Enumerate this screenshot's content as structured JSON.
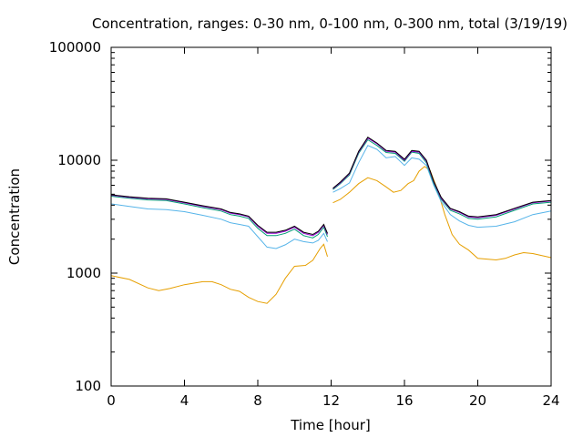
{
  "chart_data": {
    "type": "line",
    "title": "Concentration, ranges: 0-30 nm, 0-100 nm, 0-300 nm, total (3/19/19)",
    "xlabel": "Time [hour]",
    "ylabel": "Concentration",
    "xlim": [
      0,
      24
    ],
    "ylim": [
      100,
      100000
    ],
    "yscale": "log",
    "grid": false,
    "legend": "none",
    "x_ticks": [
      0,
      4,
      8,
      12,
      16,
      20,
      24
    ],
    "x_tick_labels": [
      "0",
      "4",
      "8",
      "12",
      "16",
      "20",
      "24"
    ],
    "y_ticks": [
      100,
      1000,
      10000,
      100000
    ],
    "y_tick_labels": [
      "100",
      "1000",
      "10000",
      "100000"
    ],
    "series": [
      {
        "color": "#e69f00",
        "segments": [
          [
            [
              0,
              950
            ],
            [
              1,
              880
            ],
            [
              2,
              740
            ],
            [
              2.6,
              700
            ],
            [
              3.2,
              730
            ],
            [
              4,
              790
            ],
            [
              5,
              840
            ],
            [
              5.5,
              840
            ],
            [
              6,
              790
            ],
            [
              6.5,
              720
            ],
            [
              7,
              690
            ],
            [
              7.5,
              610
            ],
            [
              8,
              560
            ],
            [
              8.5,
              540
            ],
            [
              9,
              650
            ],
            [
              9.5,
              900
            ],
            [
              10,
              1150
            ],
            [
              10.6,
              1170
            ],
            [
              11,
              1300
            ],
            [
              11.4,
              1650
            ],
            [
              11.6,
              1800
            ],
            [
              11.8,
              1400
            ]
          ],
          [
            [
              12.1,
              4200
            ],
            [
              12.5,
              4500
            ],
            [
              13,
              5200
            ],
            [
              13.5,
              6200
            ],
            [
              14,
              7000
            ],
            [
              14.5,
              6600
            ],
            [
              15,
              5800
            ],
            [
              15.4,
              5200
            ],
            [
              15.8,
              5400
            ],
            [
              16.2,
              6200
            ],
            [
              16.5,
              6600
            ],
            [
              16.8,
              8000
            ],
            [
              17.1,
              8800
            ],
            [
              17.4,
              8100
            ],
            [
              17.8,
              5500
            ],
            [
              18.2,
              3300
            ],
            [
              18.6,
              2200
            ],
            [
              19,
              1800
            ],
            [
              19.5,
              1600
            ],
            [
              20,
              1350
            ],
            [
              21,
              1310
            ],
            [
              21.5,
              1350
            ],
            [
              22,
              1450
            ],
            [
              22.5,
              1520
            ],
            [
              23,
              1490
            ],
            [
              24,
              1370
            ]
          ]
        ]
      },
      {
        "color": "#56b4e9",
        "segments": [
          [
            [
              0,
              4100
            ],
            [
              1,
              3900
            ],
            [
              2,
              3700
            ],
            [
              3,
              3650
            ],
            [
              4,
              3500
            ],
            [
              5,
              3250
            ],
            [
              6,
              3000
            ],
            [
              6.5,
              2800
            ],
            [
              7,
              2700
            ],
            [
              7.5,
              2600
            ],
            [
              8,
              2100
            ],
            [
              8.5,
              1700
            ],
            [
              9,
              1650
            ],
            [
              9.5,
              1780
            ],
            [
              10,
              2000
            ],
            [
              10.5,
              1900
            ],
            [
              11,
              1850
            ],
            [
              11.3,
              1950
            ],
            [
              11.6,
              2250
            ],
            [
              11.8,
              1900
            ]
          ],
          [
            [
              12.1,
              5200
            ],
            [
              12.5,
              5600
            ],
            [
              13,
              6300
            ],
            [
              13.5,
              9500
            ],
            [
              14,
              13500
            ],
            [
              14.5,
              12500
            ],
            [
              15,
              10500
            ],
            [
              15.5,
              10800
            ],
            [
              16,
              9000
            ],
            [
              16.4,
              10500
            ],
            [
              16.8,
              10200
            ],
            [
              17.2,
              9000
            ],
            [
              17.6,
              6000
            ],
            [
              18,
              4300
            ],
            [
              18.5,
              3300
            ],
            [
              19,
              2900
            ],
            [
              19.5,
              2650
            ],
            [
              20,
              2550
            ],
            [
              21,
              2600
            ],
            [
              22,
              2850
            ],
            [
              23,
              3300
            ],
            [
              24,
              3550
            ]
          ]
        ]
      },
      {
        "color": "#009e73",
        "segments": [
          [
            [
              0,
              4800
            ],
            [
              1,
              4600
            ],
            [
              2,
              4450
            ],
            [
              3,
              4400
            ],
            [
              4,
              4100
            ],
            [
              5,
              3800
            ],
            [
              6,
              3550
            ],
            [
              6.5,
              3300
            ],
            [
              7,
              3200
            ],
            [
              7.5,
              3050
            ],
            [
              8,
              2500
            ],
            [
              8.5,
              2150
            ],
            [
              9,
              2150
            ],
            [
              9.5,
              2250
            ],
            [
              10,
              2450
            ],
            [
              10.5,
              2150
            ],
            [
              11,
              2050
            ],
            [
              11.3,
              2200
            ],
            [
              11.6,
              2550
            ],
            [
              11.8,
              2100
            ]
          ],
          [
            [
              12.1,
              5500
            ],
            [
              12.5,
              6200
            ],
            [
              13,
              7400
            ],
            [
              13.5,
              11500
            ],
            [
              14,
              15200
            ],
            [
              14.5,
              13500
            ],
            [
              15,
              11700
            ],
            [
              15.5,
              11500
            ],
            [
              16,
              9800
            ],
            [
              16.4,
              11800
            ],
            [
              16.8,
              11500
            ],
            [
              17.2,
              9500
            ],
            [
              17.6,
              6200
            ],
            [
              18,
              4500
            ],
            [
              18.5,
              3600
            ],
            [
              19,
              3350
            ],
            [
              19.5,
              3050
            ],
            [
              20,
              3000
            ],
            [
              21,
              3150
            ],
            [
              22,
              3600
            ],
            [
              23,
              4100
            ],
            [
              24,
              4250
            ]
          ]
        ]
      },
      {
        "color": "#9400d3",
        "segments": [
          [
            [
              0,
              4900
            ],
            [
              1,
              4700
            ],
            [
              2,
              4550
            ],
            [
              3,
              4500
            ],
            [
              4,
              4200
            ],
            [
              5,
              3900
            ],
            [
              6,
              3650
            ],
            [
              6.5,
              3400
            ],
            [
              7,
              3300
            ],
            [
              7.5,
              3150
            ],
            [
              8,
              2600
            ],
            [
              8.5,
              2250
            ],
            [
              9,
              2250
            ],
            [
              9.5,
              2350
            ],
            [
              10,
              2550
            ],
            [
              10.5,
              2250
            ],
            [
              11,
              2150
            ],
            [
              11.3,
              2300
            ],
            [
              11.6,
              2650
            ],
            [
              11.8,
              2200
            ]
          ],
          [
            [
              12.1,
              5600
            ],
            [
              12.5,
              6300
            ],
            [
              13,
              7600
            ],
            [
              13.5,
              11800
            ],
            [
              14,
              15700
            ],
            [
              14.5,
              14000
            ],
            [
              15,
              12000
            ],
            [
              15.5,
              11800
            ],
            [
              16,
              10000
            ],
            [
              16.4,
              12000
            ],
            [
              16.8,
              11800
            ],
            [
              17.2,
              9800
            ],
            [
              17.6,
              6400
            ],
            [
              18,
              4600
            ],
            [
              18.5,
              3700
            ],
            [
              19,
              3450
            ],
            [
              19.5,
              3150
            ],
            [
              20,
              3100
            ],
            [
              21,
              3250
            ],
            [
              22,
              3700
            ],
            [
              23,
              4200
            ],
            [
              24,
              4350
            ]
          ]
        ]
      },
      {
        "color": "#000000",
        "segments": [
          [
            [
              0,
              4950
            ],
            [
              1,
              4750
            ],
            [
              2,
              4600
            ],
            [
              3,
              4550
            ],
            [
              4,
              4250
            ],
            [
              5,
              3950
            ],
            [
              6,
              3700
            ],
            [
              6.5,
              3450
            ],
            [
              7,
              3350
            ],
            [
              7.5,
              3200
            ],
            [
              8,
              2650
            ],
            [
              8.5,
              2300
            ],
            [
              9,
              2300
            ],
            [
              9.5,
              2400
            ],
            [
              10,
              2600
            ],
            [
              10.5,
              2300
            ],
            [
              11,
              2200
            ],
            [
              11.3,
              2350
            ],
            [
              11.6,
              2700
            ],
            [
              11.8,
              2250
            ]
          ],
          [
            [
              12.1,
              5650
            ],
            [
              12.5,
              6400
            ],
            [
              13,
              7700
            ],
            [
              13.5,
              12000
            ],
            [
              14,
              16000
            ],
            [
              14.5,
              14200
            ],
            [
              15,
              12200
            ],
            [
              15.5,
              12000
            ],
            [
              16,
              10200
            ],
            [
              16.4,
              12200
            ],
            [
              16.8,
              12000
            ],
            [
              17.2,
              10000
            ],
            [
              17.6,
              6500
            ],
            [
              18,
              4700
            ],
            [
              18.5,
              3750
            ],
            [
              19,
              3500
            ],
            [
              19.5,
              3200
            ],
            [
              20,
              3150
            ],
            [
              21,
              3300
            ],
            [
              22,
              3750
            ],
            [
              23,
              4250
            ],
            [
              24,
              4400
            ]
          ]
        ]
      }
    ]
  }
}
